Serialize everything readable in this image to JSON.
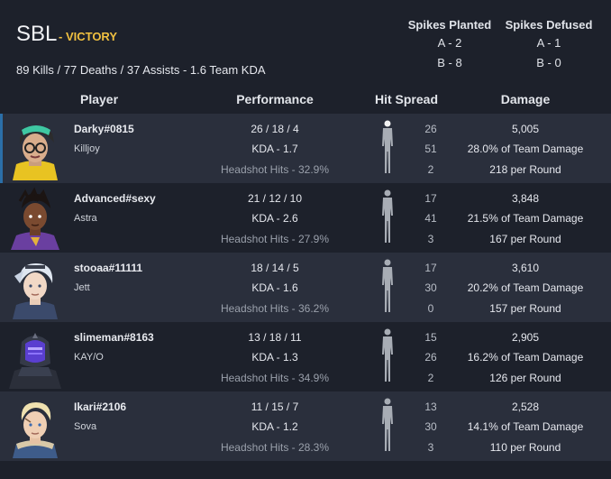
{
  "team": {
    "name": "SBL",
    "result": "- VICTORY",
    "summary": "89 Kills / 77 Deaths / 37 Assists - 1.6 Team KDA"
  },
  "spikes": {
    "planted": {
      "title": "Spikes Planted",
      "a": "A - 2",
      "b": "B - 8"
    },
    "defused": {
      "title": "Spikes Defused",
      "a": "A - 1",
      "b": "B - 0"
    }
  },
  "columns": {
    "player": "Player",
    "performance": "Performance",
    "hit_spread": "Hit Spread",
    "damage": "Damage"
  },
  "colors": {
    "background": "#1d212b",
    "row_alt": "#2a2f3c",
    "victory": "#f0c040",
    "row_accent": "#2b6fa8"
  },
  "players": [
    {
      "name": "Darky#0815",
      "agent": "Killjoy",
      "avatar_icon": "killjoy-portrait",
      "kda_line": "26 / 18 / 4",
      "kda": "KDA - 1.7",
      "headshot": "Headshot Hits - 32.9%",
      "hits": [
        "26",
        "51",
        "2"
      ],
      "damage": "5,005",
      "team_damage": "28.0% of Team Damage",
      "per_round": "218 per Round"
    },
    {
      "name": "Advanced#sexy",
      "agent": "Astra",
      "avatar_icon": "astra-portrait",
      "kda_line": "21 / 12 / 10",
      "kda": "KDA - 2.6",
      "headshot": "Headshot Hits - 27.9%",
      "hits": [
        "17",
        "41",
        "3"
      ],
      "damage": "3,848",
      "team_damage": "21.5% of Team Damage",
      "per_round": "167 per Round"
    },
    {
      "name": "stooaa#11111",
      "agent": "Jett",
      "avatar_icon": "jett-portrait",
      "kda_line": "18 / 14 / 5",
      "kda": "KDA - 1.6",
      "headshot": "Headshot Hits - 36.2%",
      "hits": [
        "17",
        "30",
        "0"
      ],
      "damage": "3,610",
      "team_damage": "20.2% of Team Damage",
      "per_round": "157 per Round"
    },
    {
      "name": "slimeman#8163",
      "agent": "KAY/O",
      "avatar_icon": "kayo-portrait",
      "kda_line": "13 / 18 / 11",
      "kda": "KDA - 1.3",
      "headshot": "Headshot Hits - 34.9%",
      "hits": [
        "15",
        "26",
        "2"
      ],
      "damage": "2,905",
      "team_damage": "16.2% of Team Damage",
      "per_round": "126 per Round"
    },
    {
      "name": "Ikari#2106",
      "agent": "Sova",
      "avatar_icon": "sova-portrait",
      "kda_line": "11 / 15 / 7",
      "kda": "KDA - 1.2",
      "headshot": "Headshot Hits - 28.3%",
      "hits": [
        "13",
        "30",
        "3"
      ],
      "damage": "2,528",
      "team_damage": "14.1% of Team Damage",
      "per_round": "110 per Round"
    }
  ]
}
